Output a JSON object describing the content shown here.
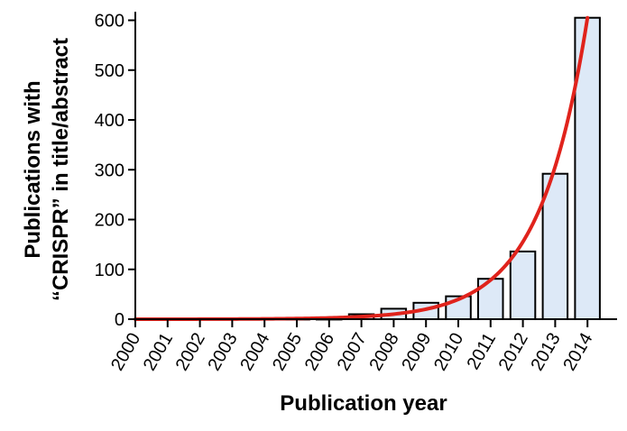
{
  "chart_data": {
    "type": "bar",
    "title": "",
    "xlabel": "Publication year",
    "ylabel_lines": [
      "Publications with",
      "“CRISPR” in title/abstract"
    ],
    "categories": [
      "2000",
      "2001",
      "2002",
      "2003",
      "2004",
      "2005",
      "2006",
      "2007",
      "2008",
      "2009",
      "2010",
      "2011",
      "2012",
      "2013",
      "2014"
    ],
    "values": [
      0,
      0,
      0,
      0,
      0,
      2,
      2,
      10,
      21,
      33,
      46,
      81,
      136,
      292,
      605
    ],
    "ylim": [
      0,
      620
    ],
    "yticks": [
      0,
      100,
      200,
      300,
      400,
      500,
      600
    ],
    "grid": false,
    "legend": "none",
    "bar_fill": "#dde9f7",
    "bar_stroke": "#000000",
    "trend_color": "#e0231c",
    "trend_type": "exponential fit"
  }
}
